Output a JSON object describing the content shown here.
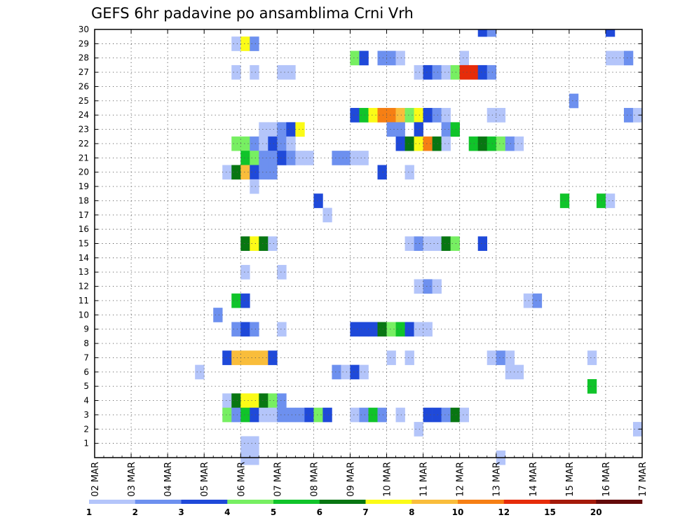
{
  "chart_data": {
    "type": "heatmap",
    "title": "GEFS 6hr padavine po ansamblima Crni Vrh",
    "x_tick_labels": [
      "02 MAR",
      "03 MAR",
      "04 MAR",
      "05 MAR",
      "06 MAR",
      "07 MAR",
      "08 MAR",
      "09 MAR",
      "10 MAR",
      "11 MAR",
      "12 MAR",
      "13 MAR",
      "14 MAR",
      "15 MAR",
      "16 MAR",
      "17 MAR"
    ],
    "x_range": [
      "02 MAR",
      "17 MAR"
    ],
    "y_tick_labels": [
      "1",
      "2",
      "3",
      "4",
      "5",
      "6",
      "7",
      "8",
      "9",
      "10",
      "11",
      "12",
      "13",
      "14",
      "15",
      "16",
      "17",
      "18",
      "19",
      "20",
      "21",
      "22",
      "23",
      "24",
      "25",
      "26",
      "27",
      "28",
      "29",
      "30"
    ],
    "y_range": [
      0,
      30
    ],
    "time_step_hours": 6,
    "grid": "dotted",
    "colorbar": {
      "labels": [
        "1",
        "2",
        "3",
        "4",
        "5",
        "6",
        "7",
        "8",
        "10",
        "12",
        "15",
        "20"
      ],
      "colors": [
        "#b4c5fa",
        "#6d90ef",
        "#1f49d9",
        "#77ef62",
        "#10c42a",
        "#087612",
        "#fbfb17",
        "#f9bd3b",
        "#f67f14",
        "#e62c0a",
        "#a51a0a",
        "#640a0a"
      ]
    },
    "cells": [
      {
        "member": 30,
        "x": "12 MAR 12",
        "c": 3
      },
      {
        "member": 30,
        "x": "12 MAR 18",
        "c": 2
      },
      {
        "member": 30,
        "x": "16 MAR 00",
        "c": 3
      },
      {
        "member": 29,
        "x": "05 MAR 18",
        "c": 1
      },
      {
        "member": 29,
        "x": "06 MAR 00",
        "c": 7
      },
      {
        "member": 29,
        "x": "06 MAR 06",
        "c": 2
      },
      {
        "member": 28,
        "x": "09 MAR 00",
        "c": 4
      },
      {
        "member": 28,
        "x": "09 MAR 06",
        "c": 3
      },
      {
        "member": 28,
        "x": "09 MAR 18",
        "c": 2
      },
      {
        "member": 28,
        "x": "10 MAR 00",
        "c": 2
      },
      {
        "member": 28,
        "x": "10 MAR 06",
        "c": 1
      },
      {
        "member": 28,
        "x": "12 MAR 00",
        "c": 1
      },
      {
        "member": 28,
        "x": "16 MAR 00",
        "c": 1
      },
      {
        "member": 28,
        "x": "16 MAR 06",
        "c": 1
      },
      {
        "member": 28,
        "x": "16 MAR 12",
        "c": 2
      },
      {
        "member": 27,
        "x": "05 MAR 18",
        "c": 1
      },
      {
        "member": 27,
        "x": "06 MAR 06",
        "c": 1
      },
      {
        "member": 27,
        "x": "07 MAR 00",
        "c": 1
      },
      {
        "member": 27,
        "x": "07 MAR 06",
        "c": 1
      },
      {
        "member": 27,
        "x": "10 MAR 18",
        "c": 1
      },
      {
        "member": 27,
        "x": "11 MAR 00",
        "c": 3
      },
      {
        "member": 27,
        "x": "11 MAR 06",
        "c": 2
      },
      {
        "member": 27,
        "x": "11 MAR 12",
        "c": 1
      },
      {
        "member": 27,
        "x": "11 MAR 18",
        "c": 4
      },
      {
        "member": 27,
        "x": "12 MAR 00",
        "c": 10
      },
      {
        "member": 27,
        "x": "12 MAR 06",
        "c": 10
      },
      {
        "member": 27,
        "x": "12 MAR 12",
        "c": 3
      },
      {
        "member": 27,
        "x": "12 MAR 18",
        "c": 2
      },
      {
        "member": 25,
        "x": "15 MAR 00",
        "c": 2
      },
      {
        "member": 24,
        "x": "09 MAR 00",
        "c": 3
      },
      {
        "member": 24,
        "x": "09 MAR 06",
        "c": 5
      },
      {
        "member": 24,
        "x": "09 MAR 12",
        "c": 7
      },
      {
        "member": 24,
        "x": "09 MAR 18",
        "c": 9
      },
      {
        "member": 24,
        "x": "10 MAR 00",
        "c": 9
      },
      {
        "member": 24,
        "x": "10 MAR 06",
        "c": 8
      },
      {
        "member": 24,
        "x": "10 MAR 12",
        "c": 4
      },
      {
        "member": 24,
        "x": "10 MAR 18",
        "c": 7
      },
      {
        "member": 24,
        "x": "11 MAR 00",
        "c": 3
      },
      {
        "member": 24,
        "x": "11 MAR 06",
        "c": 2
      },
      {
        "member": 24,
        "x": "11 MAR 12",
        "c": 1
      },
      {
        "member": 24,
        "x": "12 MAR 18",
        "c": 1
      },
      {
        "member": 24,
        "x": "13 MAR 00",
        "c": 1
      },
      {
        "member": 24,
        "x": "16 MAR 12",
        "c": 2
      },
      {
        "member": 24,
        "x": "16 MAR 18",
        "c": 1
      },
      {
        "member": 23,
        "x": "06 MAR 12",
        "c": 1
      },
      {
        "member": 23,
        "x": "06 MAR 18",
        "c": 1
      },
      {
        "member": 23,
        "x": "07 MAR 00",
        "c": 2
      },
      {
        "member": 23,
        "x": "07 MAR 06",
        "c": 3
      },
      {
        "member": 23,
        "x": "07 MAR 12",
        "c": 7
      },
      {
        "member": 23,
        "x": "10 MAR 00",
        "c": 2
      },
      {
        "member": 23,
        "x": "10 MAR 06",
        "c": 2
      },
      {
        "member": 23,
        "x": "10 MAR 18",
        "c": 3
      },
      {
        "member": 23,
        "x": "11 MAR 12",
        "c": 2
      },
      {
        "member": 23,
        "x": "11 MAR 18",
        "c": 5
      },
      {
        "member": 22,
        "x": "05 MAR 18",
        "c": 4
      },
      {
        "member": 22,
        "x": "06 MAR 00",
        "c": 4
      },
      {
        "member": 22,
        "x": "06 MAR 06",
        "c": 2
      },
      {
        "member": 22,
        "x": "06 MAR 12",
        "c": 1
      },
      {
        "member": 22,
        "x": "06 MAR 18",
        "c": 3
      },
      {
        "member": 22,
        "x": "07 MAR 00",
        "c": 2
      },
      {
        "member": 22,
        "x": "07 MAR 06",
        "c": 1
      },
      {
        "member": 22,
        "x": "10 MAR 06",
        "c": 3
      },
      {
        "member": 22,
        "x": "10 MAR 12",
        "c": 6
      },
      {
        "member": 22,
        "x": "10 MAR 18",
        "c": 7
      },
      {
        "member": 22,
        "x": "11 MAR 00",
        "c": 9
      },
      {
        "member": 22,
        "x": "11 MAR 06",
        "c": 6
      },
      {
        "member": 22,
        "x": "11 MAR 12",
        "c": 1
      },
      {
        "member": 22,
        "x": "12 MAR 06",
        "c": 5
      },
      {
        "member": 22,
        "x": "12 MAR 12",
        "c": 6
      },
      {
        "member": 22,
        "x": "12 MAR 18",
        "c": 5
      },
      {
        "member": 22,
        "x": "13 MAR 00",
        "c": 4
      },
      {
        "member": 22,
        "x": "13 MAR 06",
        "c": 2
      },
      {
        "member": 22,
        "x": "13 MAR 12",
        "c": 1
      },
      {
        "member": 21,
        "x": "06 MAR 00",
        "c": 5
      },
      {
        "member": 21,
        "x": "06 MAR 06",
        "c": 4
      },
      {
        "member": 21,
        "x": "06 MAR 12",
        "c": 2
      },
      {
        "member": 21,
        "x": "06 MAR 18",
        "c": 2
      },
      {
        "member": 21,
        "x": "07 MAR 00",
        "c": 3
      },
      {
        "member": 21,
        "x": "07 MAR 06",
        "c": 2
      },
      {
        "member": 21,
        "x": "07 MAR 12",
        "c": 1
      },
      {
        "member": 21,
        "x": "07 MAR 18",
        "c": 1
      },
      {
        "member": 21,
        "x": "08 MAR 12",
        "c": 2
      },
      {
        "member": 21,
        "x": "08 MAR 18",
        "c": 2
      },
      {
        "member": 21,
        "x": "09 MAR 00",
        "c": 1
      },
      {
        "member": 21,
        "x": "09 MAR 06",
        "c": 1
      },
      {
        "member": 20,
        "x": "05 MAR 12",
        "c": 1
      },
      {
        "member": 20,
        "x": "05 MAR 18",
        "c": 6
      },
      {
        "member": 20,
        "x": "06 MAR 00",
        "c": 8
      },
      {
        "member": 20,
        "x": "06 MAR 06",
        "c": 3
      },
      {
        "member": 20,
        "x": "06 MAR 12",
        "c": 2
      },
      {
        "member": 20,
        "x": "06 MAR 18",
        "c": 2
      },
      {
        "member": 20,
        "x": "09 MAR 18",
        "c": 3
      },
      {
        "member": 20,
        "x": "10 MAR 12",
        "c": 1
      },
      {
        "member": 19,
        "x": "06 MAR 06",
        "c": 1
      },
      {
        "member": 18,
        "x": "08 MAR 00",
        "c": 3
      },
      {
        "member": 18,
        "x": "14 MAR 18",
        "c": 5
      },
      {
        "member": 18,
        "x": "15 MAR 18",
        "c": 5
      },
      {
        "member": 18,
        "x": "16 MAR 00",
        "c": 1
      },
      {
        "member": 17,
        "x": "08 MAR 06",
        "c": 1
      },
      {
        "member": 15,
        "x": "06 MAR 00",
        "c": 6
      },
      {
        "member": 15,
        "x": "06 MAR 06",
        "c": 7
      },
      {
        "member": 15,
        "x": "06 MAR 12",
        "c": 6
      },
      {
        "member": 15,
        "x": "06 MAR 18",
        "c": 1
      },
      {
        "member": 15,
        "x": "10 MAR 12",
        "c": 1
      },
      {
        "member": 15,
        "x": "10 MAR 18",
        "c": 2
      },
      {
        "member": 15,
        "x": "11 MAR 00",
        "c": 1
      },
      {
        "member": 15,
        "x": "11 MAR 06",
        "c": 1
      },
      {
        "member": 15,
        "x": "11 MAR 12",
        "c": 6
      },
      {
        "member": 15,
        "x": "11 MAR 18",
        "c": 4
      },
      {
        "member": 15,
        "x": "12 MAR 12",
        "c": 3
      },
      {
        "member": 13,
        "x": "06 MAR 00",
        "c": 1
      },
      {
        "member": 13,
        "x": "07 MAR 00",
        "c": 1
      },
      {
        "member": 12,
        "x": "10 MAR 18",
        "c": 1
      },
      {
        "member": 12,
        "x": "11 MAR 00",
        "c": 2
      },
      {
        "member": 12,
        "x": "11 MAR 06",
        "c": 1
      },
      {
        "member": 11,
        "x": "05 MAR 18",
        "c": 5
      },
      {
        "member": 11,
        "x": "06 MAR 00",
        "c": 3
      },
      {
        "member": 11,
        "x": "13 MAR 18",
        "c": 1
      },
      {
        "member": 11,
        "x": "14 MAR 00",
        "c": 2
      },
      {
        "member": 10,
        "x": "05 MAR 06",
        "c": 2
      },
      {
        "member": 9,
        "x": "05 MAR 18",
        "c": 2
      },
      {
        "member": 9,
        "x": "06 MAR 00",
        "c": 3
      },
      {
        "member": 9,
        "x": "06 MAR 06",
        "c": 2
      },
      {
        "member": 9,
        "x": "07 MAR 00",
        "c": 1
      },
      {
        "member": 9,
        "x": "09 MAR 00",
        "c": 3
      },
      {
        "member": 9,
        "x": "09 MAR 06",
        "c": 3
      },
      {
        "member": 9,
        "x": "09 MAR 12",
        "c": 3
      },
      {
        "member": 9,
        "x": "09 MAR 18",
        "c": 6
      },
      {
        "member": 9,
        "x": "10 MAR 00",
        "c": 4
      },
      {
        "member": 9,
        "x": "10 MAR 06",
        "c": 5
      },
      {
        "member": 9,
        "x": "10 MAR 12",
        "c": 3
      },
      {
        "member": 9,
        "x": "10 MAR 18",
        "c": 1
      },
      {
        "member": 9,
        "x": "11 MAR 00",
        "c": 1
      },
      {
        "member": 7,
        "x": "05 MAR 12",
        "c": 3
      },
      {
        "member": 7,
        "x": "05 MAR 18",
        "c": 8
      },
      {
        "member": 7,
        "x": "06 MAR 00",
        "c": 8
      },
      {
        "member": 7,
        "x": "06 MAR 06",
        "c": 8
      },
      {
        "member": 7,
        "x": "06 MAR 12",
        "c": 8
      },
      {
        "member": 7,
        "x": "06 MAR 18",
        "c": 3
      },
      {
        "member": 7,
        "x": "10 MAR 00",
        "c": 1
      },
      {
        "member": 7,
        "x": "10 MAR 12",
        "c": 1
      },
      {
        "member": 7,
        "x": "12 MAR 18",
        "c": 1
      },
      {
        "member": 7,
        "x": "13 MAR 00",
        "c": 2
      },
      {
        "member": 7,
        "x": "13 MAR 06",
        "c": 1
      },
      {
        "member": 7,
        "x": "15 MAR 12",
        "c": 1
      },
      {
        "member": 6,
        "x": "04 MAR 18",
        "c": 1
      },
      {
        "member": 6,
        "x": "08 MAR 12",
        "c": 2
      },
      {
        "member": 6,
        "x": "08 MAR 18",
        "c": 1
      },
      {
        "member": 6,
        "x": "09 MAR 00",
        "c": 3
      },
      {
        "member": 6,
        "x": "09 MAR 06",
        "c": 1
      },
      {
        "member": 6,
        "x": "13 MAR 06",
        "c": 1
      },
      {
        "member": 6,
        "x": "13 MAR 12",
        "c": 1
      },
      {
        "member": 5,
        "x": "15 MAR 12",
        "c": 5
      },
      {
        "member": 4,
        "x": "05 MAR 12",
        "c": 1
      },
      {
        "member": 4,
        "x": "05 MAR 18",
        "c": 6
      },
      {
        "member": 4,
        "x": "06 MAR 00",
        "c": 7
      },
      {
        "member": 4,
        "x": "06 MAR 06",
        "c": 7
      },
      {
        "member": 4,
        "x": "06 MAR 12",
        "c": 6
      },
      {
        "member": 4,
        "x": "06 MAR 18",
        "c": 4
      },
      {
        "member": 4,
        "x": "07 MAR 00",
        "c": 2
      },
      {
        "member": 3,
        "x": "05 MAR 12",
        "c": 4
      },
      {
        "member": 3,
        "x": "05 MAR 18",
        "c": 2
      },
      {
        "member": 3,
        "x": "06 MAR 00",
        "c": 5
      },
      {
        "member": 3,
        "x": "06 MAR 06",
        "c": 3
      },
      {
        "member": 3,
        "x": "06 MAR 12",
        "c": 1
      },
      {
        "member": 3,
        "x": "06 MAR 18",
        "c": 1
      },
      {
        "member": 3,
        "x": "07 MAR 00",
        "c": 2
      },
      {
        "member": 3,
        "x": "07 MAR 06",
        "c": 2
      },
      {
        "member": 3,
        "x": "07 MAR 12",
        "c": 2
      },
      {
        "member": 3,
        "x": "07 MAR 18",
        "c": 3
      },
      {
        "member": 3,
        "x": "08 MAR 00",
        "c": 4
      },
      {
        "member": 3,
        "x": "08 MAR 06",
        "c": 3
      },
      {
        "member": 3,
        "x": "09 MAR 00",
        "c": 1
      },
      {
        "member": 3,
        "x": "09 MAR 06",
        "c": 2
      },
      {
        "member": 3,
        "x": "09 MAR 12",
        "c": 5
      },
      {
        "member": 3,
        "x": "09 MAR 18",
        "c": 2
      },
      {
        "member": 3,
        "x": "10 MAR 06",
        "c": 1
      },
      {
        "member": 3,
        "x": "11 MAR 00",
        "c": 3
      },
      {
        "member": 3,
        "x": "11 MAR 06",
        "c": 3
      },
      {
        "member": 3,
        "x": "11 MAR 12",
        "c": 2
      },
      {
        "member": 3,
        "x": "11 MAR 18",
        "c": 6
      },
      {
        "member": 3,
        "x": "12 MAR 00",
        "c": 1
      },
      {
        "member": 2,
        "x": "10 MAR 18",
        "c": 1
      },
      {
        "member": 2,
        "x": "16 MAR 18",
        "c": 1
      },
      {
        "member": 1,
        "x": "06 MAR 00",
        "c": 1
      },
      {
        "member": 1,
        "x": "06 MAR 06",
        "c": 1
      },
      {
        "member": 0,
        "x": "06 MAR 00",
        "c": 1
      },
      {
        "member": 0,
        "x": "06 MAR 06",
        "c": 1
      },
      {
        "member": 0,
        "x": "13 MAR 00",
        "c": 1
      }
    ]
  }
}
